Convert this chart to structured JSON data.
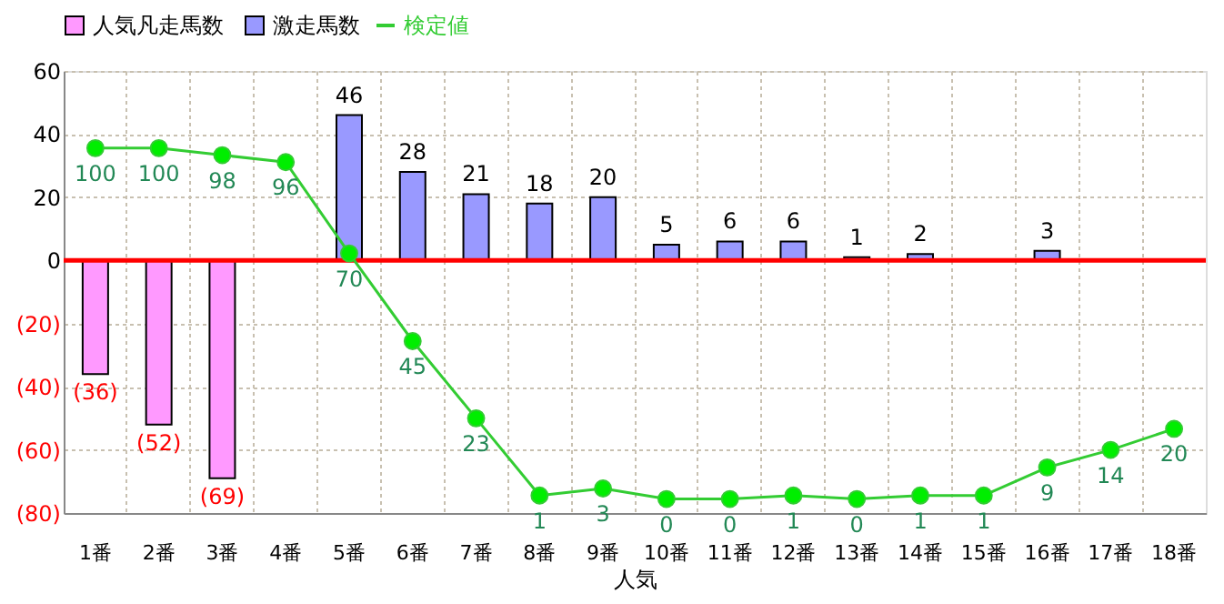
{
  "chart_data": {
    "type": "bar",
    "stacked": true,
    "xlabel": "人気",
    "categories": [
      "1番",
      "2番",
      "3番",
      "4番",
      "5番",
      "6番",
      "7番",
      "8番",
      "9番",
      "10番",
      "11番",
      "12番",
      "13番",
      "14番",
      "15番",
      "16番",
      "17番",
      "18番"
    ],
    "ylim": [
      -80,
      60
    ],
    "yticks": [
      {
        "value": -80,
        "label": "(80)"
      },
      {
        "value": -60,
        "label": "(60)"
      },
      {
        "value": -40,
        "label": "(40)"
      },
      {
        "value": -20,
        "label": "(20)"
      },
      0,
      20,
      40,
      60
    ],
    "y2lim": [
      -4,
      122
    ],
    "grid": true,
    "legend": "top",
    "ref_lines": [
      {
        "axis": "y",
        "value": 0,
        "color": "#ff0000",
        "line_style": "solid"
      }
    ],
    "series": [
      {
        "name": "人気凡走馬数",
        "type": "bar",
        "color": "#ff99ff",
        "values": [
          -36,
          -52,
          -69,
          null,
          null,
          null,
          null,
          null,
          null,
          null,
          null,
          null,
          null,
          null,
          null,
          null,
          null,
          null
        ],
        "value_labels": [
          "(36)",
          "(52)",
          "(69)",
          null,
          null,
          null,
          null,
          null,
          null,
          null,
          null,
          null,
          null,
          null,
          null,
          null,
          null,
          null
        ]
      },
      {
        "name": "激走馬数",
        "type": "bar",
        "color": "#9999ff",
        "values": [
          null,
          null,
          null,
          null,
          46,
          28,
          21,
          18,
          20,
          5,
          6,
          6,
          1,
          2,
          null,
          3,
          null,
          null
        ],
        "value_labels": [
          null,
          null,
          null,
          null,
          "46",
          "28",
          "21",
          "18",
          "20",
          "5",
          "6",
          "6",
          "1",
          "2",
          null,
          "3",
          null,
          null
        ]
      },
      {
        "name": "検定値",
        "type": "line",
        "axis": "y2",
        "marker": "circle",
        "color": "#33cc33",
        "values": [
          100,
          100,
          98,
          96,
          70,
          45,
          23,
          1,
          3,
          0,
          0,
          1,
          0,
          1,
          1,
          9,
          14,
          20
        ],
        "value_labels": [
          "100",
          "100",
          "98",
          "96",
          "70",
          "45",
          "23",
          "1",
          "3",
          "0",
          "0",
          "1",
          "0",
          "1",
          "1",
          "9",
          "14",
          "20"
        ]
      }
    ]
  }
}
